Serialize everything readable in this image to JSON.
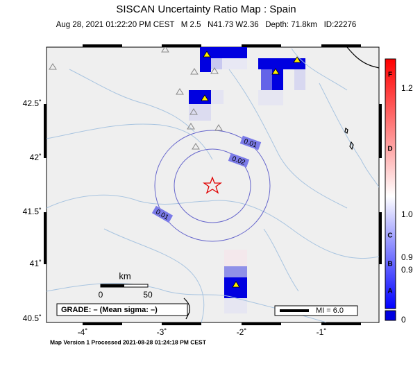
{
  "header": {
    "title": "SISCAN Uncertainty Ratio Map : Spain",
    "subtitle": "Aug 28, 2021 01:22:20 PM CEST   M 2.5   N41.73 W2.36   Depth: 71.8km   ID:22276"
  },
  "map": {
    "lat_labels": [
      "42.5˚",
      "42˚",
      "41.5˚",
      "41˚",
      "40.5˚"
    ],
    "lon_labels": [
      "-4˚",
      "-3˚",
      "-2˚",
      "-1˚"
    ],
    "contour_labels": [
      "0.01",
      "0.02",
      "0.01"
    ],
    "scale": {
      "unit": "km",
      "start": "0",
      "end": "50"
    },
    "grade": "GRADE: – (Mean sigma: –)",
    "mi": "MI = 6.0"
  },
  "colorbar": {
    "grades": [
      "F",
      "D",
      "C",
      "B",
      "A"
    ],
    "values": [
      "1.2",
      "1.0",
      "0.9",
      "0.9",
      "0"
    ]
  },
  "footer": "Map Version 1 Processed 2021-08-28 01:24:18 PM CEST"
}
